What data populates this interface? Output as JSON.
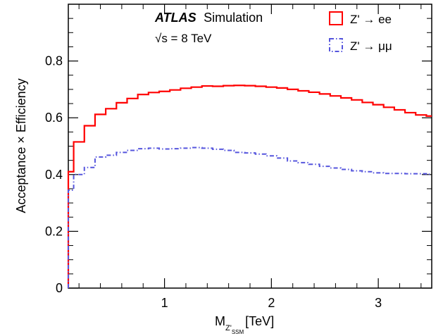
{
  "chart_data": {
    "type": "line",
    "plot_style": "step-histogram",
    "experiment": "ATLAS",
    "experiment_suffix": "Simulation",
    "energy_label": "√s = 8 TeV",
    "xlabel_main": "M",
    "xlabel_sub": "Z'",
    "xlabel_subsub": "SSM",
    "xlabel_unit": "[TeV]",
    "ylabel": "Acceptance × Efficiency",
    "xlim": [
      0.1,
      3.5
    ],
    "ylim": [
      0,
      1.0
    ],
    "xticks": [
      {
        "value": 1,
        "label": "1"
      },
      {
        "value": 2,
        "label": "2"
      },
      {
        "value": 3,
        "label": "3"
      }
    ],
    "yticks": [
      {
        "value": 0,
        "label": "0"
      },
      {
        "value": 0.2,
        "label": "0.2"
      },
      {
        "value": 0.4,
        "label": "0.4"
      },
      {
        "value": 0.6,
        "label": "0.6"
      },
      {
        "value": 0.8,
        "label": "0.8"
      }
    ],
    "legend_position": "top-right",
    "bin_edges": [
      0.1,
      0.15,
      0.25,
      0.35,
      0.45,
      0.55,
      0.65,
      0.75,
      0.85,
      0.95,
      1.05,
      1.15,
      1.25,
      1.35,
      1.45,
      1.55,
      1.65,
      1.75,
      1.85,
      1.95,
      2.05,
      2.15,
      2.25,
      2.35,
      2.45,
      2.55,
      2.65,
      2.75,
      2.85,
      2.95,
      3.05,
      3.15,
      3.25,
      3.35,
      3.45,
      3.5
    ],
    "series": [
      {
        "name": "Z' → ee",
        "color": "#ff0000",
        "line_style": "solid",
        "values": [
          0.41,
          0.515,
          0.572,
          0.612,
          0.632,
          0.653,
          0.668,
          0.682,
          0.689,
          0.693,
          0.698,
          0.704,
          0.708,
          0.712,
          0.711,
          0.713,
          0.714,
          0.713,
          0.711,
          0.708,
          0.705,
          0.7,
          0.695,
          0.69,
          0.684,
          0.677,
          0.67,
          0.663,
          0.654,
          0.646,
          0.637,
          0.628,
          0.618,
          0.61,
          0.606
        ]
      },
      {
        "name": "Z' → μμ",
        "color": "#5555dd",
        "line_style": "dashdot",
        "values": [
          0.345,
          0.4,
          0.425,
          0.462,
          0.468,
          0.478,
          0.485,
          0.491,
          0.493,
          0.49,
          0.491,
          0.493,
          0.495,
          0.493,
          0.489,
          0.485,
          0.478,
          0.476,
          0.472,
          0.466,
          0.458,
          0.448,
          0.442,
          0.436,
          0.429,
          0.423,
          0.418,
          0.413,
          0.41,
          0.406,
          0.404,
          0.404,
          0.403,
          0.403,
          0.401
        ]
      }
    ]
  }
}
